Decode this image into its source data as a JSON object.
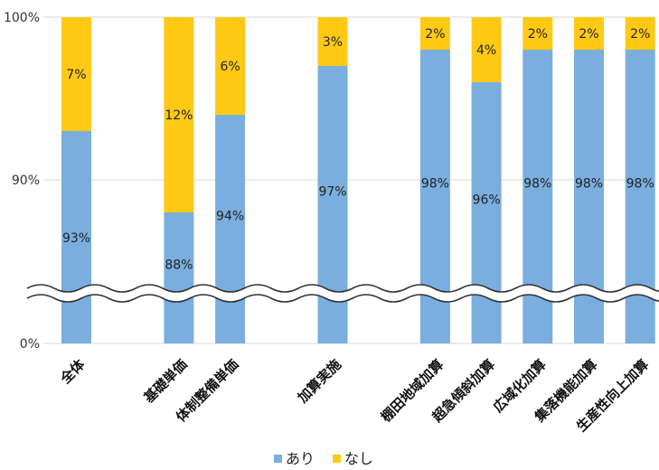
{
  "chart_data": {
    "type": "bar",
    "stacked": true,
    "axis_break": true,
    "categories": [
      "全体",
      "基礎単価",
      "体制整備単価",
      "加算実施",
      "棚田地域加算",
      "超急傾斜加算",
      "広域化加算",
      "集落機能加算",
      "生産性向上加算"
    ],
    "series": [
      {
        "name": "あり",
        "color": "#7aaedf",
        "values": [
          93,
          88,
          94,
          97,
          98,
          96,
          98,
          98,
          98
        ],
        "labels": [
          "93%",
          "88%",
          "94%",
          "97%",
          "98%",
          "96%",
          "98%",
          "98%",
          "98%"
        ]
      },
      {
        "name": "なし",
        "color": "#ffc914",
        "values": [
          7,
          12,
          6,
          3,
          2,
          4,
          2,
          2,
          2
        ],
        "labels": [
          "7%",
          "12%",
          "6%",
          "3%",
          "2%",
          "4%",
          "2%",
          "2%",
          "2%"
        ]
      }
    ],
    "y_ticks": [
      "0%",
      "90%",
      "100%"
    ],
    "ylim": [
      0,
      100
    ],
    "legend_position": "bottom",
    "grid": true
  }
}
